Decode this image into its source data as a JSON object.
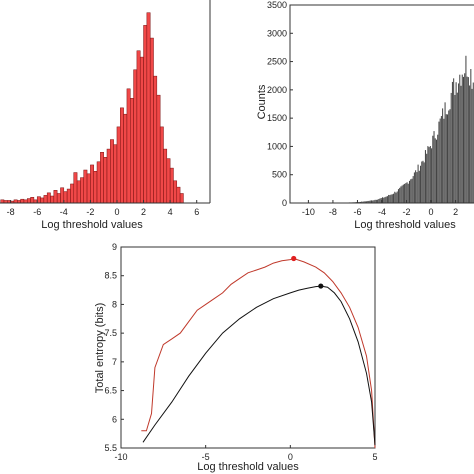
{
  "chart_data": [
    {
      "type": "bar",
      "panel": "top-left",
      "xlabel": "Log threshold values",
      "ylabel": "",
      "xlim": [
        -8.8,
        7
      ],
      "ylim": [
        0,
        32
      ],
      "xticks": [
        -8,
        -6,
        -4,
        -2,
        0,
        2,
        4,
        6
      ],
      "bin_width": 0.25,
      "bar_color": "#f04848",
      "edge_color": "#7a1010",
      "bins_start": [
        -8.75,
        -8.5,
        -8.25,
        -8,
        -7.75,
        -7.5,
        -7.25,
        -7,
        -6.75,
        -6.5,
        -6.25,
        -6,
        -5.75,
        -5.5,
        -5.25,
        -5,
        -4.75,
        -4.5,
        -4.25,
        -4,
        -3.75,
        -3.5,
        -3.25,
        -3,
        -2.75,
        -2.5,
        -2.25,
        -2,
        -1.75,
        -1.5,
        -1.25,
        -1,
        -0.75,
        -0.5,
        -0.25,
        0,
        0.25,
        0.5,
        0.75,
        1,
        1.25,
        1.5,
        1.75,
        2,
        2.25,
        2.5,
        2.75,
        3,
        3.25,
        3.5,
        3.75,
        4,
        4.25,
        4.5,
        4.75
      ],
      "counts": [
        0.5,
        0.4,
        0.4,
        0.3,
        0.5,
        0.4,
        0.6,
        0.5,
        0.7,
        0.9,
        0.5,
        1.0,
        0.8,
        1.2,
        1.6,
        1.1,
        2.0,
        1.5,
        2.4,
        1.8,
        2.2,
        3.0,
        4.8,
        3.5,
        4.0,
        5.2,
        4.6,
        6.0,
        5.0,
        6.5,
        8.0,
        7.2,
        8.5,
        10.0,
        9.2,
        12.0,
        15.0,
        14.0,
        18.0,
        16.5,
        21.0,
        24.0,
        23.0,
        28.0,
        30.0,
        26.0,
        20.0,
        17.0,
        12.0,
        8.5,
        7.0,
        5.5,
        3.5,
        2.5,
        1.5
      ]
    },
    {
      "type": "bar",
      "panel": "top-right",
      "xlabel": "Log threshold values",
      "ylabel": "Counts",
      "xlim": [
        -11.5,
        3.5
      ],
      "ylim": [
        0,
        3500
      ],
      "xticks": [
        -10,
        -8,
        -6,
        -4,
        -2,
        0,
        2
      ],
      "yticks": [
        0,
        500,
        1000,
        1500,
        2000,
        2500,
        3000,
        3500
      ],
      "bin_width": 0.1,
      "bar_color": "#444444",
      "range_start": -10,
      "range_end": 3.5
    },
    {
      "type": "line",
      "panel": "bottom",
      "xlabel": "Log threshold values",
      "ylabel": "Total entropy (bits)",
      "xlim": [
        -10,
        5
      ],
      "ylim": [
        5.5,
        9
      ],
      "xticks": [
        -10,
        -5,
        0,
        5
      ],
      "yticks": [
        5.5,
        6,
        6.5,
        7,
        7.5,
        8,
        8.5,
        9
      ],
      "series": [
        {
          "color": "#c0392b",
          "x": [
            -8.8,
            -8.5,
            -8.2,
            -8.0,
            -7.5,
            -7.0,
            -6.5,
            -6.0,
            -5.5,
            -5.0,
            -4.5,
            -4.0,
            -3.5,
            -3.0,
            -2.5,
            -2.0,
            -1.5,
            -1.0,
            -0.5,
            0.0,
            0.2,
            0.8,
            1.5,
            2.0,
            2.5,
            3.0,
            3.5,
            4.0,
            4.5,
            4.8,
            5.0
          ],
          "y": [
            5.8,
            5.8,
            6.1,
            6.9,
            7.3,
            7.4,
            7.5,
            7.7,
            7.9,
            8.0,
            8.1,
            8.2,
            8.35,
            8.45,
            8.55,
            8.6,
            8.65,
            8.72,
            8.76,
            8.78,
            8.8,
            8.74,
            8.65,
            8.55,
            8.4,
            8.2,
            7.95,
            7.6,
            7.1,
            6.5,
            5.5
          ]
        },
        {
          "color": "#111111",
          "x": [
            -8.7,
            -8.0,
            -7.0,
            -6.0,
            -5.0,
            -4.0,
            -3.0,
            -2.0,
            -1.0,
            0.0,
            0.5,
            1.0,
            1.5,
            1.8,
            2.2,
            2.6,
            3.0,
            3.5,
            4.0,
            4.5,
            4.8,
            5.0
          ],
          "y": [
            5.6,
            5.9,
            6.3,
            6.75,
            7.15,
            7.5,
            7.75,
            7.95,
            8.1,
            8.2,
            8.25,
            8.28,
            8.31,
            8.32,
            8.3,
            8.2,
            8.05,
            7.75,
            7.35,
            6.8,
            6.3,
            5.55
          ]
        }
      ],
      "markers": [
        {
          "x": 0.2,
          "y": 8.8,
          "color": "#e02020"
        },
        {
          "x": 1.8,
          "y": 8.32,
          "color": "#111111"
        }
      ]
    }
  ]
}
